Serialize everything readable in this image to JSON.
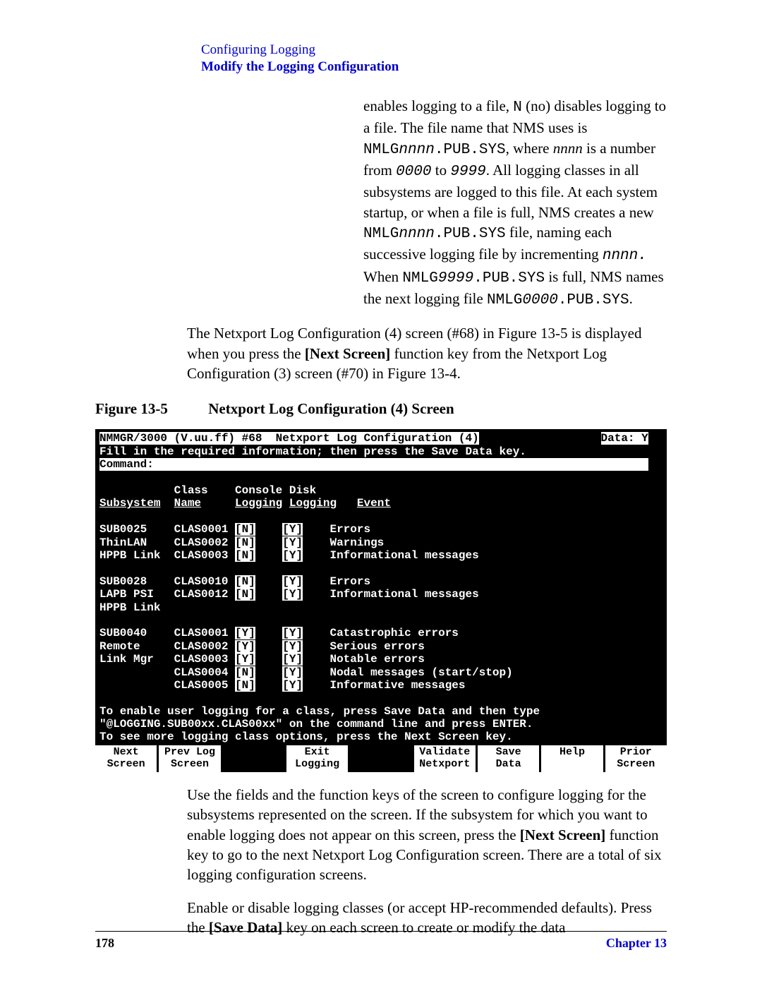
{
  "header": {
    "line1": "Configuring Logging",
    "line2": "Modify the Logging Configuration"
  },
  "para1_parts": {
    "t1": "enables logging to a file, ",
    "code1": "N",
    "t2": " (no) disables logging to a file. The file name that NMS uses is ",
    "code2": "NMLG",
    "ital1": "nnnn",
    "code3": ".PUB.SYS",
    "t3": ", where ",
    "ital2": "nnnn",
    "t4": " is a number from ",
    "ital3": "0000",
    "t5": " to ",
    "ital4": "9999",
    "t6": ". All logging classes in all subsystems are logged to this file. At each system startup, or when a file is full, NMS creates a new ",
    "code4": "NMLG",
    "ital5": "nnnn",
    "code5": ".PUB.SYS",
    "t7": " file, naming each successive logging file by incrementing ",
    "ital6": "nnnn.",
    "t8": " When ",
    "code6": "NMLG",
    "ital7": "9999",
    "code7": ".PUB.SYS",
    "t9": " is full, NMS names the next logging file ",
    "code8": "NMLG",
    "ital8": "0000",
    "code9": ".PUB.SYS",
    "t10": "."
  },
  "para2_parts": {
    "t1": "The Netxport Log Configuration (4) screen (#68) in Figure 13-5 is displayed when you press the ",
    "b1": "[Next Screen]",
    "t2": " function key from the Netxport Log Configuration (3) screen (#70) in Figure 13-4."
  },
  "figure": {
    "label": "Figure 13-5",
    "title": "Netxport Log Configuration (4) Screen"
  },
  "terminal": {
    "title_left": "NMMGR/3000 (V.uu.ff) #68  Netxport Log Configuration (4)",
    "title_right": "Data: Y",
    "instr": "Fill in the required information; then press the Save Data key.",
    "cmd_label": "Command:",
    "hdr1": "           Class    Console Disk",
    "hdr2_sub": "Subsystem",
    "hdr2_name": "Name",
    "hdr2_log1": "Logging",
    "hdr2_log2": "Logging",
    "hdr2_event": "Event",
    "rows": [
      {
        "sub": "SUB0025",
        "class": "CLAS0001",
        "c": "[N]",
        "d": "[Y]",
        "ev": "Errors"
      },
      {
        "sub": "ThinLAN",
        "class": "CLAS0002",
        "c": "[N]",
        "d": "[Y]",
        "ev": "Warnings"
      },
      {
        "sub": "HPPB Link",
        "class": "CLAS0003",
        "c": "[N]",
        "d": "[Y]",
        "ev": "Informational messages"
      },
      {
        "gap": true
      },
      {
        "sub": "SUB0028",
        "class": "CLAS0010",
        "c": "[N]",
        "d": "[Y]",
        "ev": "Errors"
      },
      {
        "sub": "LAPB PSI",
        "class": "CLAS0012",
        "c": "[N]",
        "d": "[Y]",
        "ev": "Informational messages"
      },
      {
        "sub": "HPPB Link",
        "class": "",
        "c": "",
        "d": "",
        "ev": ""
      },
      {
        "gap": true
      },
      {
        "sub": "SUB0040",
        "class": "CLAS0001",
        "c": "[Y]",
        "d": "[Y]",
        "ev": "Catastrophic errors"
      },
      {
        "sub": "Remote",
        "class": "CLAS0002",
        "c": "[Y]",
        "d": "[Y]",
        "ev": "Serious errors"
      },
      {
        "sub": "Link Mgr",
        "class": "CLAS0003",
        "c": "[Y]",
        "d": "[Y]",
        "ev": "Notable errors"
      },
      {
        "sub": "",
        "class": "CLAS0004",
        "c": "[N]",
        "d": "[Y]",
        "ev": "Nodal messages (start/stop)"
      },
      {
        "sub": "",
        "class": "CLAS0005",
        "c": "[N]",
        "d": "[Y]",
        "ev": "Informative messages"
      }
    ],
    "foot1": "To enable user logging for a class, press Save Data and then type",
    "foot2": "\"@LOGGING.SUB00xx.CLAS00xx\" on the command line and press ENTER.",
    "foot3": "To see more logging class options, press the Next Screen key.",
    "fnkeys": [
      {
        "l1": "Next",
        "l2": "Screen"
      },
      {
        "l1": "Prev Log",
        "l2": "Screen"
      },
      {
        "blank": true
      },
      {
        "l1": "Exit",
        "l2": "Logging"
      },
      {
        "blank": true
      },
      {
        "l1": "Validate",
        "l2": "Netxport"
      },
      {
        "l1": "Save",
        "l2": "Data"
      },
      {
        "l1": "Help",
        "l2": ""
      },
      {
        "l1": "Prior",
        "l2": "Screen"
      }
    ]
  },
  "para3_parts": {
    "t1": "Use the fields and the function keys of the screen to configure logging for the subsystems represented on the screen. If the subsystem for which you want to enable logging does not appear on this screen, press the ",
    "b1": "[Next Screen]",
    "t2": " function key to go to the next Netxport Log Configuration screen. There are a total of six logging configuration screens."
  },
  "para4_parts": {
    "t1": "Enable or disable logging classes (or accept HP-recommended defaults). Press the ",
    "b1": "[Save Data]",
    "t2": " key on each screen to create or modify the data"
  },
  "footer": {
    "page": "178",
    "chapter": "Chapter 13"
  }
}
